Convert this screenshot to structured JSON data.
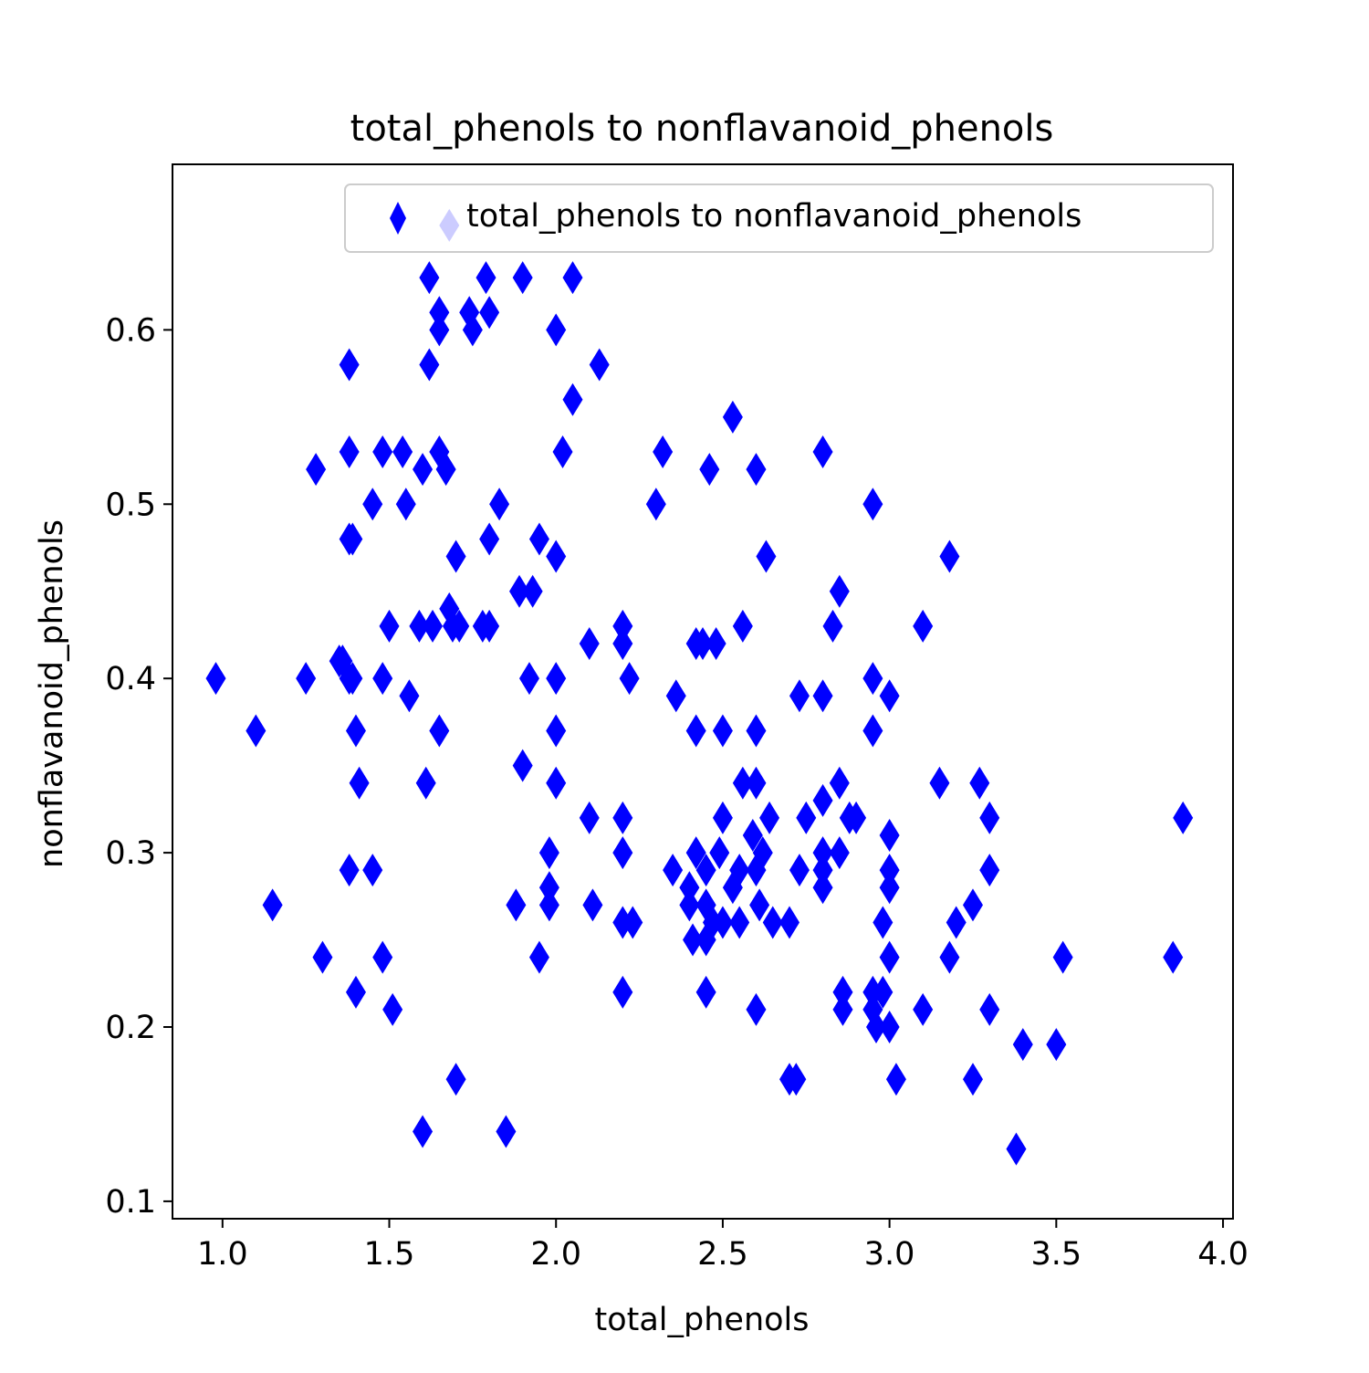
{
  "chart_data": {
    "type": "scatter",
    "title": "total_phenols to nonflavanoid_phenols",
    "xlabel": "total_phenols",
    "ylabel": "nonflavanoid_phenols",
    "xlim": [
      0.85,
      4.03
    ],
    "ylim": [
      0.09,
      0.695
    ],
    "xticks": [
      "1.0",
      "1.5",
      "2.0",
      "2.5",
      "3.0",
      "3.5",
      "4.0"
    ],
    "yticks": [
      "0.1",
      "0.2",
      "0.3",
      "0.4",
      "0.5",
      "0.6"
    ],
    "grid": false,
    "legend": {
      "position": "top-right",
      "entries": [
        "total_phenols to nonflavanoid_phenols"
      ]
    },
    "marker": "diamond",
    "color": "#0000ff",
    "series": [
      {
        "name": "total_phenols to nonflavanoid_phenols",
        "points": [
          [
            0.98,
            0.4
          ],
          [
            1.1,
            0.37
          ],
          [
            1.15,
            0.27
          ],
          [
            1.25,
            0.4
          ],
          [
            1.28,
            0.52
          ],
          [
            1.3,
            0.24
          ],
          [
            1.35,
            0.41
          ],
          [
            1.36,
            0.41
          ],
          [
            1.38,
            0.58
          ],
          [
            1.38,
            0.53
          ],
          [
            1.38,
            0.48
          ],
          [
            1.39,
            0.48
          ],
          [
            1.38,
            0.4
          ],
          [
            1.39,
            0.4
          ],
          [
            1.4,
            0.37
          ],
          [
            1.41,
            0.34
          ],
          [
            1.38,
            0.29
          ],
          [
            1.4,
            0.22
          ],
          [
            1.45,
            0.5
          ],
          [
            1.48,
            0.53
          ],
          [
            1.48,
            0.4
          ],
          [
            1.45,
            0.29
          ],
          [
            1.48,
            0.24
          ],
          [
            1.5,
            0.43
          ],
          [
            1.51,
            0.21
          ],
          [
            1.54,
            0.53
          ],
          [
            1.55,
            0.5
          ],
          [
            1.56,
            0.39
          ],
          [
            1.59,
            0.43
          ],
          [
            1.6,
            0.52
          ],
          [
            1.61,
            0.34
          ],
          [
            1.6,
            0.14
          ],
          [
            1.62,
            0.63
          ],
          [
            1.62,
            0.58
          ],
          [
            1.63,
            0.43
          ],
          [
            1.65,
            0.61
          ],
          [
            1.65,
            0.6
          ],
          [
            1.65,
            0.53
          ],
          [
            1.67,
            0.52
          ],
          [
            1.65,
            0.37
          ],
          [
            1.68,
            0.66
          ],
          [
            1.68,
            0.44
          ],
          [
            1.69,
            0.43
          ],
          [
            1.7,
            0.47
          ],
          [
            1.7,
            0.17
          ],
          [
            1.71,
            0.43
          ],
          [
            1.74,
            0.61
          ],
          [
            1.75,
            0.6
          ],
          [
            1.78,
            0.43
          ],
          [
            1.79,
            0.63
          ],
          [
            1.8,
            0.61
          ],
          [
            1.8,
            0.48
          ],
          [
            1.8,
            0.43
          ],
          [
            1.83,
            0.5
          ],
          [
            1.85,
            0.14
          ],
          [
            1.88,
            0.27
          ],
          [
            1.89,
            0.45
          ],
          [
            1.9,
            0.63
          ],
          [
            1.9,
            0.35
          ],
          [
            1.92,
            0.4
          ],
          [
            1.93,
            0.45
          ],
          [
            1.95,
            0.48
          ],
          [
            1.95,
            0.24
          ],
          [
            1.98,
            0.3
          ],
          [
            1.98,
            0.28
          ],
          [
            1.98,
            0.27
          ],
          [
            2.0,
            0.6
          ],
          [
            2.0,
            0.47
          ],
          [
            2.0,
            0.4
          ],
          [
            2.0,
            0.37
          ],
          [
            2.0,
            0.34
          ],
          [
            2.02,
            0.53
          ],
          [
            2.05,
            0.63
          ],
          [
            2.05,
            0.56
          ],
          [
            2.1,
            0.42
          ],
          [
            2.1,
            0.32
          ],
          [
            2.11,
            0.27
          ],
          [
            2.13,
            0.58
          ],
          [
            2.2,
            0.43
          ],
          [
            2.2,
            0.42
          ],
          [
            2.2,
            0.32
          ],
          [
            2.2,
            0.3
          ],
          [
            2.2,
            0.26
          ],
          [
            2.2,
            0.22
          ],
          [
            2.22,
            0.4
          ],
          [
            2.23,
            0.26
          ],
          [
            2.3,
            0.5
          ],
          [
            2.32,
            0.53
          ],
          [
            2.35,
            0.29
          ],
          [
            2.36,
            0.39
          ],
          [
            2.4,
            0.28
          ],
          [
            2.4,
            0.27
          ],
          [
            2.41,
            0.25
          ],
          [
            2.42,
            0.42
          ],
          [
            2.42,
            0.3
          ],
          [
            2.42,
            0.37
          ],
          [
            2.44,
            0.42
          ],
          [
            2.45,
            0.29
          ],
          [
            2.45,
            0.27
          ],
          [
            2.45,
            0.25
          ],
          [
            2.45,
            0.22
          ],
          [
            2.46,
            0.52
          ],
          [
            2.47,
            0.26
          ],
          [
            2.48,
            0.42
          ],
          [
            2.49,
            0.3
          ],
          [
            2.5,
            0.37
          ],
          [
            2.5,
            0.32
          ],
          [
            2.5,
            0.26
          ],
          [
            2.53,
            0.55
          ],
          [
            2.53,
            0.28
          ],
          [
            2.55,
            0.29
          ],
          [
            2.55,
            0.26
          ],
          [
            2.56,
            0.43
          ],
          [
            2.56,
            0.34
          ],
          [
            2.59,
            0.31
          ],
          [
            2.6,
            0.52
          ],
          [
            2.6,
            0.37
          ],
          [
            2.6,
            0.34
          ],
          [
            2.6,
            0.29
          ],
          [
            2.6,
            0.21
          ],
          [
            2.61,
            0.27
          ],
          [
            2.62,
            0.3
          ],
          [
            2.63,
            0.47
          ],
          [
            2.64,
            0.32
          ],
          [
            2.65,
            0.26
          ],
          [
            2.7,
            0.26
          ],
          [
            2.7,
            0.17
          ],
          [
            2.72,
            0.17
          ],
          [
            2.73,
            0.39
          ],
          [
            2.73,
            0.29
          ],
          [
            2.75,
            0.32
          ],
          [
            2.8,
            0.53
          ],
          [
            2.8,
            0.39
          ],
          [
            2.8,
            0.33
          ],
          [
            2.8,
            0.3
          ],
          [
            2.8,
            0.29
          ],
          [
            2.8,
            0.28
          ],
          [
            2.83,
            0.43
          ],
          [
            2.85,
            0.45
          ],
          [
            2.85,
            0.34
          ],
          [
            2.85,
            0.3
          ],
          [
            2.86,
            0.22
          ],
          [
            2.86,
            0.21
          ],
          [
            2.88,
            0.32
          ],
          [
            2.9,
            0.32
          ],
          [
            2.95,
            0.5
          ],
          [
            2.95,
            0.4
          ],
          [
            2.95,
            0.37
          ],
          [
            2.95,
            0.22
          ],
          [
            2.95,
            0.21
          ],
          [
            2.96,
            0.2
          ],
          [
            2.98,
            0.26
          ],
          [
            2.98,
            0.22
          ],
          [
            3.0,
            0.39
          ],
          [
            3.0,
            0.31
          ],
          [
            3.0,
            0.29
          ],
          [
            3.0,
            0.28
          ],
          [
            3.0,
            0.24
          ],
          [
            3.0,
            0.2
          ],
          [
            3.02,
            0.17
          ],
          [
            3.1,
            0.43
          ],
          [
            3.1,
            0.21
          ],
          [
            3.15,
            0.34
          ],
          [
            3.18,
            0.47
          ],
          [
            3.18,
            0.24
          ],
          [
            3.2,
            0.26
          ],
          [
            3.25,
            0.27
          ],
          [
            3.25,
            0.17
          ],
          [
            3.27,
            0.34
          ],
          [
            3.3,
            0.32
          ],
          [
            3.3,
            0.29
          ],
          [
            3.3,
            0.21
          ],
          [
            3.38,
            0.13
          ],
          [
            3.4,
            0.19
          ],
          [
            3.5,
            0.19
          ],
          [
            3.52,
            0.24
          ],
          [
            3.85,
            0.24
          ],
          [
            3.88,
            0.32
          ]
        ]
      }
    ]
  }
}
